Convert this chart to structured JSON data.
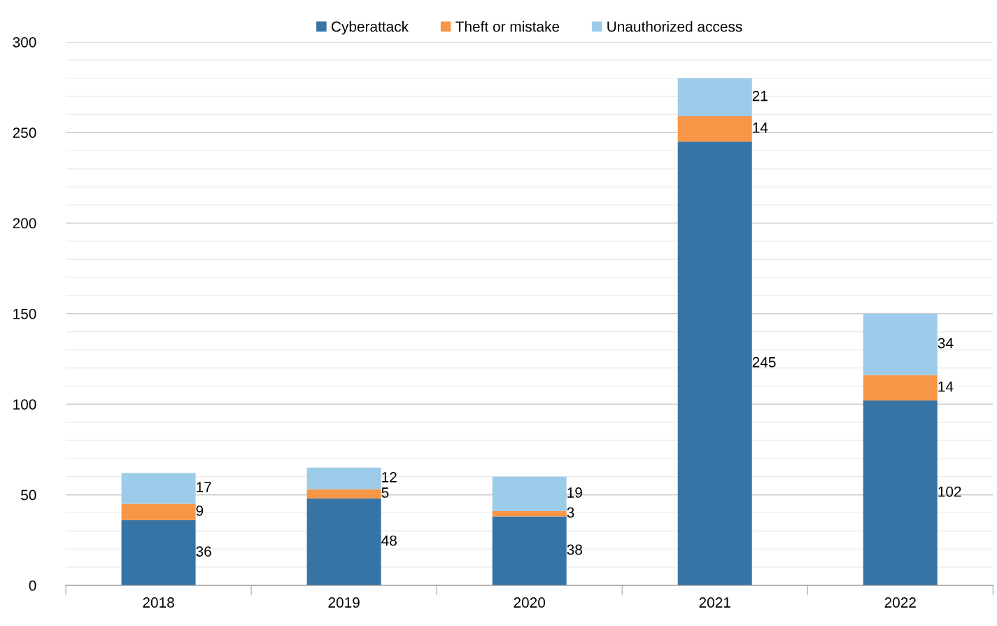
{
  "chart_data": {
    "type": "bar",
    "stacked": true,
    "categories": [
      "2018",
      "2019",
      "2020",
      "2021",
      "2022"
    ],
    "series": [
      {
        "name": "Cyberattack",
        "color": "#3674a5",
        "values": [
          36,
          48,
          38,
          245,
          102
        ]
      },
      {
        "name": "Theft or mistake",
        "color": "#f79646",
        "values": [
          9,
          5,
          3,
          14,
          14
        ]
      },
      {
        "name": "Unauthorized access",
        "color": "#9dcbea",
        "values": [
          17,
          12,
          19,
          21,
          34
        ]
      }
    ],
    "ylim": [
      0,
      300
    ],
    "yticks": [
      0,
      {
        "value": 10,
        "label": null
      },
      {
        "value": 20,
        "label": null
      },
      {
        "value": 30,
        "label": null
      },
      {
        "value": 40,
        "label": null
      },
      50,
      {
        "value": 60,
        "label": null
      },
      {
        "value": 70,
        "label": null
      },
      {
        "value": 80,
        "label": null
      },
      {
        "value": 90,
        "label": null
      },
      100,
      {
        "value": 110,
        "label": null
      },
      {
        "value": 120,
        "label": null
      },
      {
        "value": 130,
        "label": null
      },
      {
        "value": 140,
        "label": null
      },
      150,
      {
        "value": 160,
        "label": null
      },
      {
        "value": 170,
        "label": null
      },
      {
        "value": 180,
        "label": null
      },
      {
        "value": 190,
        "label": null
      },
      200,
      {
        "value": 210,
        "label": null
      },
      {
        "value": 220,
        "label": null
      },
      {
        "value": 230,
        "label": null
      },
      {
        "value": 240,
        "label": null
      },
      250,
      {
        "value": 260,
        "label": null
      },
      {
        "value": 270,
        "label": null
      },
      {
        "value": 280,
        "label": null
      },
      {
        "value": 290,
        "label": null
      },
      300
    ],
    "grid": "y",
    "legend": "top",
    "data_labels": true
  }
}
